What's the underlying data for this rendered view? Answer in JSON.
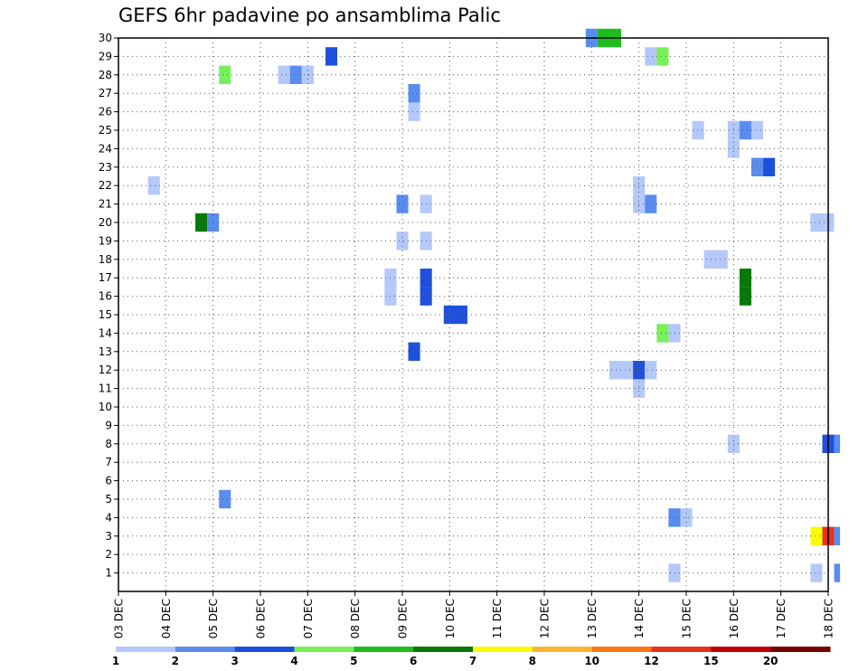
{
  "title": "GEFS 6hr padavine po ansamblima Palic",
  "chart_data": {
    "type": "heatmap",
    "title": "GEFS 6hr padavine po ansamblima Palic",
    "x_tick_labels": [
      "03 DEC",
      "04 DEC",
      "05 DEC",
      "06 DEC",
      "07 DEC",
      "08 DEC",
      "09 DEC",
      "10 DEC",
      "11 DEC",
      "12 DEC",
      "13 DEC",
      "14 DEC",
      "15 DEC",
      "16 DEC",
      "17 DEC",
      "18 DEC"
    ],
    "y_tick_labels": [
      "1",
      "2",
      "3",
      "4",
      "5",
      "6",
      "7",
      "8",
      "9",
      "10",
      "11",
      "12",
      "13",
      "14",
      "15",
      "16",
      "17",
      "18",
      "19",
      "20",
      "21",
      "22",
      "23",
      "24",
      "25",
      "26",
      "27",
      "28",
      "29",
      "30"
    ],
    "time_step_hours": 6,
    "ylim": [
      0,
      30
    ],
    "grid": true,
    "colorbar": {
      "placement": "bottom",
      "colors": [
        "#b4c8fa",
        "#5a8cf0",
        "#1e50dc",
        "#78f05a",
        "#1ebe1e",
        "#087808",
        "#fafa0a",
        "#fab432",
        "#fa7814",
        "#e6321e",
        "#c00000",
        "#780000"
      ],
      "labels": [
        "1",
        "2",
        "3",
        "4",
        "5",
        "6",
        "7",
        "8",
        "10",
        "12",
        "15",
        "20"
      ]
    },
    "cells": [
      {
        "member": 30,
        "step": 39.5,
        "len": 1,
        "color": "#5a8cf0"
      },
      {
        "member": 30,
        "step": 40.5,
        "len": 2,
        "color": "#1ebe1e"
      },
      {
        "member": 29,
        "step": 17.5,
        "len": 1,
        "color": "#1e50dc"
      },
      {
        "member": 29,
        "step": 44.5,
        "len": 1,
        "color": "#b4c8fa"
      },
      {
        "member": 29,
        "step": 45.5,
        "len": 1,
        "color": "#78f05a"
      },
      {
        "member": 28,
        "step": 8.5,
        "len": 1,
        "color": "#78f05a"
      },
      {
        "member": 28,
        "step": 13.5,
        "len": 1,
        "color": "#b4c8fa"
      },
      {
        "member": 28,
        "step": 14.5,
        "len": 1,
        "color": "#5a8cf0"
      },
      {
        "member": 28,
        "step": 15.5,
        "len": 1,
        "color": "#b4c8fa"
      },
      {
        "member": 27,
        "step": 24.5,
        "len": 1,
        "color": "#5a8cf0"
      },
      {
        "member": 26,
        "step": 24.5,
        "len": 1,
        "color": "#b4c8fa"
      },
      {
        "member": 25,
        "step": 48.5,
        "len": 1,
        "color": "#b4c8fa"
      },
      {
        "member": 25,
        "step": 51.5,
        "len": 1,
        "color": "#b4c8fa"
      },
      {
        "member": 25,
        "step": 52.5,
        "len": 1,
        "color": "#5a8cf0"
      },
      {
        "member": 25,
        "step": 53.5,
        "len": 1,
        "color": "#b4c8fa"
      },
      {
        "member": 24,
        "step": 51.5,
        "len": 1,
        "color": "#b4c8fa"
      },
      {
        "member": 23,
        "step": 53.5,
        "len": 1,
        "color": "#5a8cf0"
      },
      {
        "member": 23,
        "step": 54.5,
        "len": 1,
        "color": "#1e50dc"
      },
      {
        "member": 22,
        "step": 2.5,
        "len": 1,
        "color": "#b4c8fa"
      },
      {
        "member": 22,
        "step": 43.5,
        "len": 1,
        "color": "#b4c8fa"
      },
      {
        "member": 21,
        "step": 23.5,
        "len": 1,
        "color": "#5a8cf0"
      },
      {
        "member": 21,
        "step": 25.5,
        "len": 1,
        "color": "#b4c8fa"
      },
      {
        "member": 21,
        "step": 43.5,
        "len": 1,
        "color": "#b4c8fa"
      },
      {
        "member": 21,
        "step": 44.5,
        "len": 1,
        "color": "#5a8cf0"
      },
      {
        "member": 20,
        "step": 6.5,
        "len": 1,
        "color": "#087808"
      },
      {
        "member": 20,
        "step": 7.5,
        "len": 1,
        "color": "#5a8cf0"
      },
      {
        "member": 20,
        "step": 58.5,
        "len": 2,
        "color": "#b4c8fa"
      },
      {
        "member": 19,
        "step": 23.5,
        "len": 1,
        "color": "#b4c8fa"
      },
      {
        "member": 19,
        "step": 25.5,
        "len": 1,
        "color": "#b4c8fa"
      },
      {
        "member": 18,
        "step": 49.5,
        "len": 2,
        "color": "#b4c8fa"
      },
      {
        "member": 17,
        "step": 22.5,
        "len": 1,
        "color": "#b4c8fa"
      },
      {
        "member": 17,
        "step": 25.5,
        "len": 1,
        "color": "#1e50dc"
      },
      {
        "member": 17,
        "step": 52.5,
        "len": 1,
        "color": "#087808"
      },
      {
        "member": 16,
        "step": 22.5,
        "len": 1,
        "color": "#b4c8fa"
      },
      {
        "member": 16,
        "step": 25.5,
        "len": 1,
        "color": "#1e50dc"
      },
      {
        "member": 16,
        "step": 52.5,
        "len": 1,
        "color": "#087808"
      },
      {
        "member": 15,
        "step": 27.5,
        "len": 2,
        "color": "#1e50dc"
      },
      {
        "member": 14,
        "step": 45.5,
        "len": 1,
        "color": "#78f05a"
      },
      {
        "member": 14,
        "step": 46.5,
        "len": 1,
        "color": "#b4c8fa"
      },
      {
        "member": 13,
        "step": 24.5,
        "len": 1,
        "color": "#1e50dc"
      },
      {
        "member": 12,
        "step": 41.5,
        "len": 2,
        "color": "#b4c8fa"
      },
      {
        "member": 12,
        "step": 43.5,
        "len": 1,
        "color": "#1e50dc"
      },
      {
        "member": 12,
        "step": 44.5,
        "len": 1,
        "color": "#b4c8fa"
      },
      {
        "member": 11,
        "step": 43.5,
        "len": 1,
        "color": "#b4c8fa"
      },
      {
        "member": 8,
        "step": 51.5,
        "len": 1,
        "color": "#b4c8fa"
      },
      {
        "member": 8,
        "step": 59.5,
        "len": 1,
        "color": "#1e50dc"
      },
      {
        "member": 8,
        "step": 60.5,
        "len": 0.5,
        "color": "#5a8cf0"
      },
      {
        "member": 5,
        "step": 8.5,
        "len": 1,
        "color": "#5a8cf0"
      },
      {
        "member": 4,
        "step": 46.5,
        "len": 1,
        "color": "#5a8cf0"
      },
      {
        "member": 4,
        "step": 47.5,
        "len": 1,
        "color": "#b4c8fa"
      },
      {
        "member": 3,
        "step": 58.5,
        "len": 1,
        "color": "#fafa0a"
      },
      {
        "member": 3,
        "step": 59.5,
        "len": 1,
        "color": "#e6321e"
      },
      {
        "member": 3,
        "step": 60.5,
        "len": 0.5,
        "color": "#5a8cf0"
      },
      {
        "member": 1,
        "step": 46.5,
        "len": 1,
        "color": "#b4c8fa"
      },
      {
        "member": 1,
        "step": 58.5,
        "len": 1,
        "color": "#b4c8fa"
      },
      {
        "member": 1,
        "step": 60.5,
        "len": 0.5,
        "color": "#5a8cf0"
      }
    ]
  }
}
